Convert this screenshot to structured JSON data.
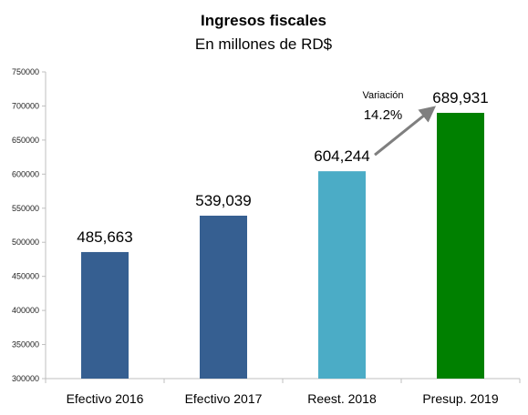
{
  "chart_data": {
    "type": "bar",
    "title": "Ingresos fiscales",
    "subtitle": "En millones de RD$",
    "categories": [
      "Efectivo 2016",
      "Efectivo 2017",
      "Reest. 2018",
      "Presup. 2019"
    ],
    "values": [
      485663,
      539039,
      604244,
      689931
    ],
    "value_labels": [
      "485,663",
      "539,039",
      "604,244",
      "689,931"
    ],
    "bar_colors": [
      "#365f91",
      "#365f91",
      "#4bacc6",
      "#008000"
    ],
    "ylim": [
      300000,
      750000
    ],
    "yticks": [
      300000,
      350000,
      400000,
      450000,
      500000,
      550000,
      600000,
      650000,
      700000,
      750000
    ],
    "ytick_labels": [
      "300000",
      "350000",
      "400000",
      "450000",
      "500000",
      "550000",
      "600000",
      "650000",
      "700000",
      "750000"
    ],
    "grid": false,
    "legend": "none",
    "annotation": {
      "label": "Variación",
      "value": "14.2%",
      "arrow_from_category": "Reest. 2018",
      "arrow_to_category": "Presup. 2019",
      "arrow_color": "#7f7f7f"
    }
  }
}
